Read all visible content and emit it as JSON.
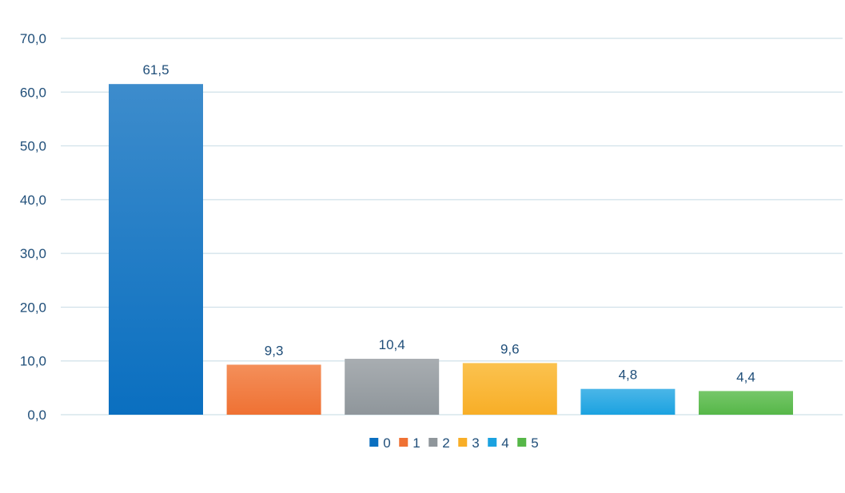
{
  "chart_data": {
    "type": "bar",
    "title": "",
    "xlabel": "",
    "ylabel": "",
    "categories": [
      "0",
      "1",
      "2",
      "3",
      "4",
      "5"
    ],
    "values": [
      61.5,
      9.3,
      10.4,
      9.6,
      4.8,
      4.4
    ],
    "data_labels": [
      "61,5",
      "9,3",
      "10,4",
      "9,6",
      "4,8",
      "4,4"
    ],
    "ylim": [
      0,
      70
    ],
    "y_ticks": [
      0,
      10,
      20,
      30,
      40,
      50,
      60,
      70
    ],
    "y_tick_labels": [
      "0,0",
      "10,0",
      "20,0",
      "30,0",
      "40,0",
      "50,0",
      "60,0",
      "70,0"
    ],
    "colors": [
      "#0a6fc0",
      "#ef7133",
      "#8f969b",
      "#f8ae27",
      "#1ba2e0",
      "#56b748"
    ],
    "colors_light": [
      "#3d8ccc",
      "#f48f5a",
      "#a8adb1",
      "#fbc24f",
      "#4bb6e8",
      "#76c76a"
    ],
    "text_color": "#1f4e79",
    "grid_color": "#cfe0e8",
    "grid": true,
    "legend": {
      "position": "bottom",
      "entries": [
        "0",
        "1",
        "2",
        "3",
        "4",
        "5"
      ]
    }
  }
}
